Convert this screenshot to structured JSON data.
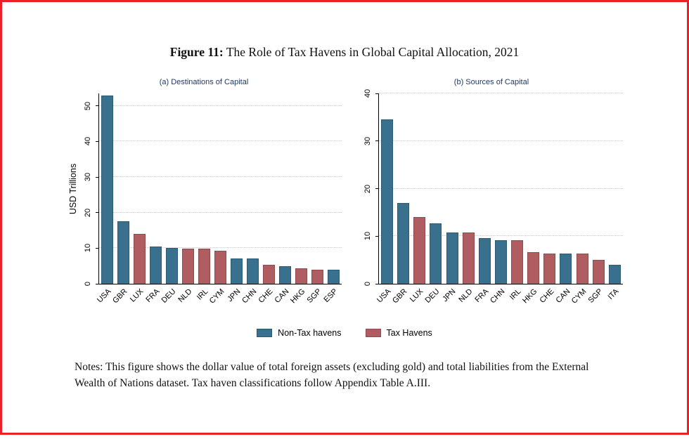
{
  "page": {
    "title_label": "Figure 11:",
    "title_text": "The Role of Tax Havens in Global Capital Allocation, 2021",
    "notes": "Notes: This figure shows the dollar value of total foreign assets (excluding gold) and total liabilities from the External Wealth of Nations dataset. Tax haven classifications follow Appendix Table A.III.",
    "frame_color": "#ec2127"
  },
  "legend": {
    "items": [
      {
        "label": "Non-Tax havens",
        "color": "#38708e",
        "border": "#2b5a73"
      },
      {
        "label": "Tax Havens",
        "color": "#b05d62",
        "border": "#8f4a4e"
      }
    ]
  },
  "chart_data": [
    {
      "type": "bar",
      "title": "(a) Destinations of Capital",
      "ylabel": "USD Trillions",
      "categories": [
        "USA",
        "GBR",
        "LUX",
        "FRA",
        "DEU",
        "NLD",
        "IRL",
        "CYM",
        "JPN",
        "CHN",
        "CHE",
        "CAN",
        "HKG",
        "SGP",
        "ESP"
      ],
      "values": [
        53,
        17.5,
        14,
        10.5,
        10,
        9.8,
        9.8,
        9.3,
        7.2,
        7.2,
        5.3,
        5,
        4.4,
        4,
        3.9
      ],
      "tax_haven": [
        false,
        false,
        true,
        false,
        false,
        true,
        true,
        true,
        false,
        false,
        true,
        false,
        true,
        true,
        false
      ],
      "yticks": [
        0,
        10,
        20,
        30,
        40,
        50
      ],
      "ylim": [
        0,
        53.5
      ],
      "grid": true,
      "legend_position": "bottom"
    },
    {
      "type": "bar",
      "title": "(b) Sources of Capital",
      "ylabel": "",
      "categories": [
        "USA",
        "GBR",
        "LUX",
        "DEU",
        "JPN",
        "NLD",
        "FRA",
        "CHN",
        "IRL",
        "HKG",
        "CHE",
        "CAN",
        "CYM",
        "SGP",
        "ITA"
      ],
      "values": [
        34.5,
        17,
        14,
        12.7,
        10.8,
        10.8,
        9.6,
        9.2,
        9.2,
        6.6,
        6.4,
        6.3,
        6.3,
        5,
        4
      ],
      "tax_haven": [
        false,
        false,
        true,
        false,
        false,
        true,
        false,
        false,
        true,
        true,
        true,
        false,
        true,
        true,
        false
      ],
      "yticks": [
        0,
        10,
        20,
        30,
        40
      ],
      "ylim": [
        0,
        40
      ],
      "grid": true,
      "legend_position": "bottom"
    }
  ]
}
